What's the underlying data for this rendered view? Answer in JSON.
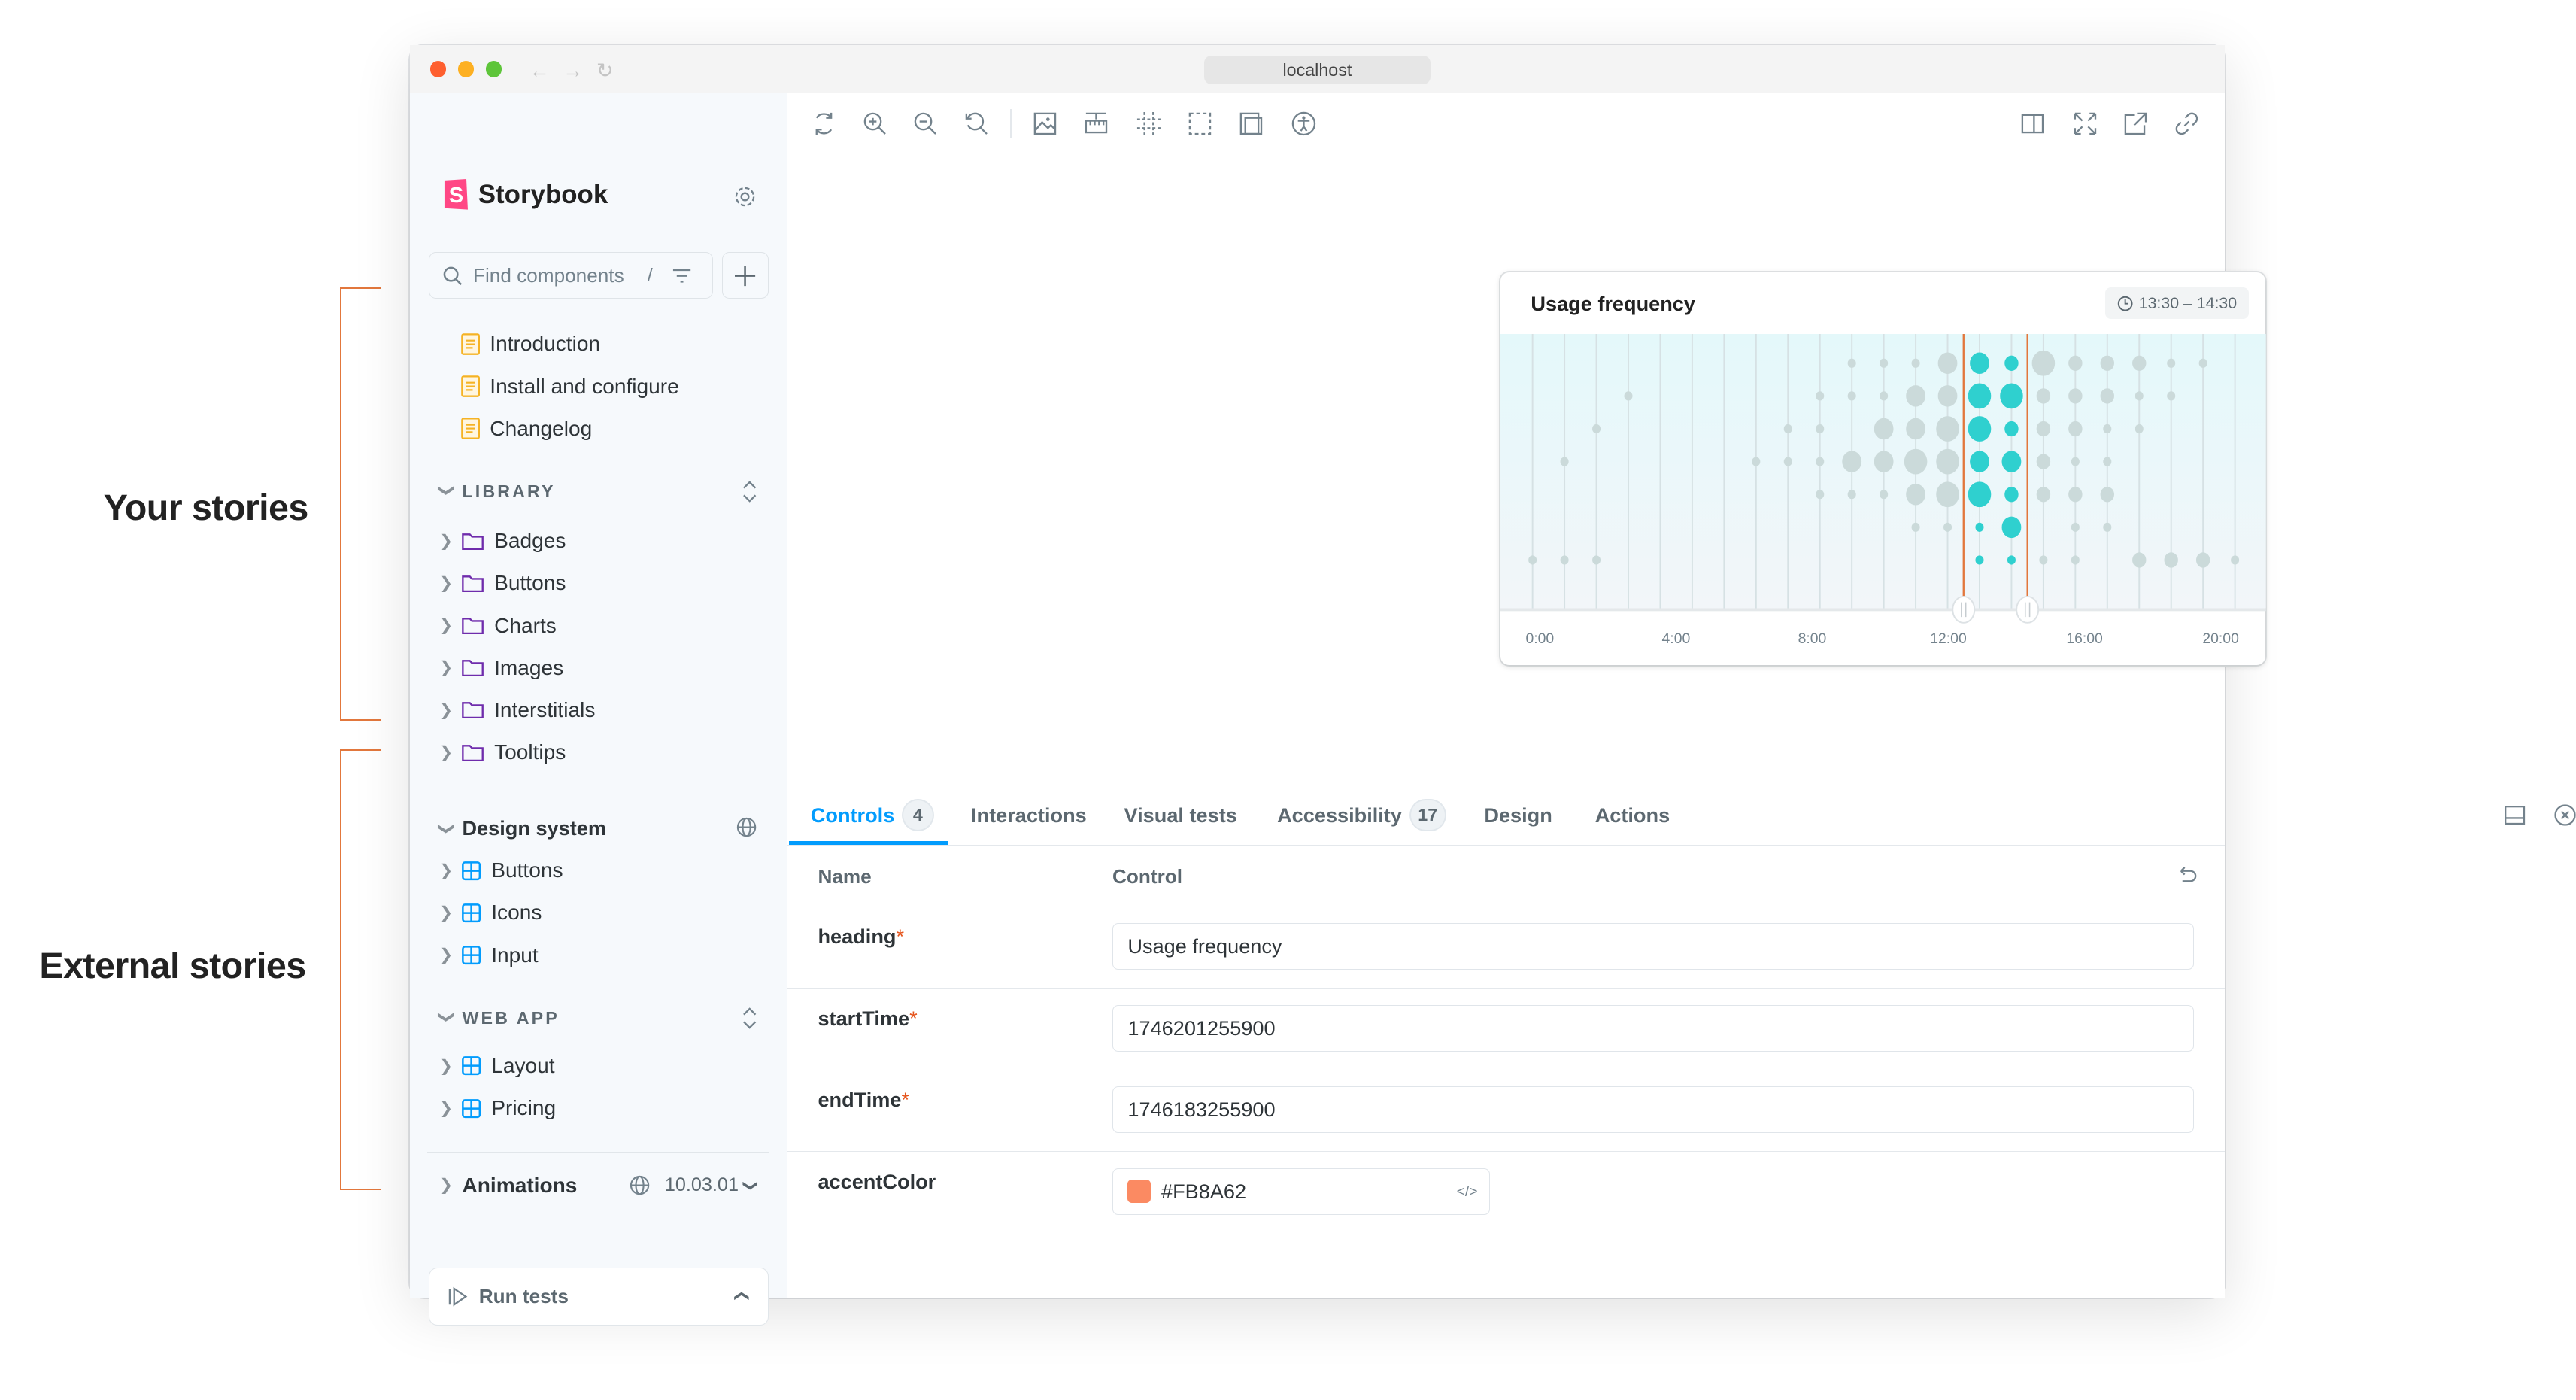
{
  "annotations": {
    "your_stories": "Your stories",
    "external_stories": "External stories",
    "bracket_color": "#E2773C"
  },
  "browser": {
    "url": "localhost"
  },
  "sidebar": {
    "brand": "Storybook",
    "brand_color": "#FF4785",
    "search_placeholder": "Find components",
    "search_shortcut": "/",
    "docs": [
      {
        "label": "Introduction"
      },
      {
        "label": "Install and configure"
      },
      {
        "label": "Changelog"
      }
    ],
    "library": {
      "title": "LIBRARY",
      "items": [
        {
          "label": "Badges"
        },
        {
          "label": "Buttons"
        },
        {
          "label": "Charts"
        },
        {
          "label": "Images"
        },
        {
          "label": "Interstitials"
        },
        {
          "label": "Tooltips"
        }
      ]
    },
    "design_system": {
      "title": "Design system",
      "items": [
        {
          "label": "Buttons"
        },
        {
          "label": "Icons"
        },
        {
          "label": "Input"
        }
      ]
    },
    "web_app": {
      "title": "WEB APP",
      "items": [
        {
          "label": "Layout"
        },
        {
          "label": "Pricing"
        }
      ]
    },
    "animations": {
      "title": "Animations",
      "version": "10.03.01"
    },
    "run_tests": "Run tests"
  },
  "toolbar": {
    "left_icons": [
      "remount-icon",
      "zoom-in-icon",
      "zoom-out-icon",
      "zoom-reset-icon",
      "background-icon",
      "measure-icon",
      "grid-icon",
      "outline-icon",
      "viewport-icon",
      "accessibility-icon"
    ],
    "right_icons": [
      "sidebar-toggle-icon",
      "fullscreen-icon",
      "open-new-tab-icon",
      "copy-link-icon"
    ]
  },
  "chart_data": {
    "type": "scatter",
    "title": "Usage frequency",
    "range_label": "13:30 – 14:30",
    "x_tick_labels": [
      "0:00",
      "4:00",
      "8:00",
      "12:00",
      "16:00",
      "20:00"
    ],
    "columns": 23,
    "rows": 7,
    "size_levels": "0=none,1=small,2=medium,3=large,4=xlarge",
    "highlight_columns": [
      14,
      15
    ],
    "colors": {
      "base": "#CBDADA",
      "highlight": "#2FD0CF",
      "range_line": "#E2773C"
    },
    "grid": [
      [
        0,
        0,
        0,
        0,
        0,
        0,
        0,
        0,
        0,
        0,
        1,
        1,
        1,
        3,
        3,
        2,
        4,
        2,
        2,
        2,
        1,
        1,
        0
      ],
      [
        0,
        0,
        0,
        1,
        0,
        0,
        0,
        0,
        0,
        1,
        1,
        1,
        3,
        3,
        4,
        4,
        2,
        2,
        2,
        1,
        1,
        0,
        0
      ],
      [
        0,
        0,
        1,
        0,
        0,
        0,
        0,
        0,
        1,
        1,
        0,
        3,
        3,
        4,
        4,
        2,
        2,
        2,
        1,
        1,
        0,
        0,
        0
      ],
      [
        0,
        1,
        0,
        0,
        0,
        0,
        0,
        1,
        1,
        1,
        3,
        3,
        4,
        4,
        3,
        3,
        2,
        1,
        1,
        0,
        0,
        0,
        0
      ],
      [
        0,
        0,
        0,
        0,
        0,
        0,
        0,
        0,
        0,
        1,
        1,
        1,
        3,
        4,
        4,
        2,
        2,
        2,
        2,
        0,
        0,
        0,
        0
      ],
      [
        0,
        0,
        0,
        0,
        0,
        0,
        0,
        0,
        0,
        0,
        0,
        0,
        1,
        1,
        1,
        3,
        0,
        1,
        1,
        0,
        0,
        0,
        0
      ],
      [
        1,
        1,
        1,
        0,
        0,
        0,
        0,
        0,
        0,
        0,
        0,
        0,
        0,
        0,
        1,
        1,
        1,
        1,
        0,
        2,
        2,
        2,
        1
      ]
    ]
  },
  "panel": {
    "tabs": [
      {
        "label": "Controls",
        "badge": "4"
      },
      {
        "label": "Interactions"
      },
      {
        "label": "Visual tests"
      },
      {
        "label": "Accessibility",
        "badge": "17"
      },
      {
        "label": "Design"
      },
      {
        "label": "Actions"
      }
    ],
    "active_tab": "Controls",
    "accent": "#029CFD",
    "columns": {
      "name": "Name",
      "control": "Control"
    },
    "rows": [
      {
        "name": "heading",
        "required": "*",
        "value": "Usage frequency"
      },
      {
        "name": "startTime",
        "required": "*",
        "value": "1746201255900"
      },
      {
        "name": "endTime",
        "required": "*",
        "value": "1746183255900"
      },
      {
        "name": "accentColor",
        "value": "#FB8A62"
      }
    ]
  }
}
